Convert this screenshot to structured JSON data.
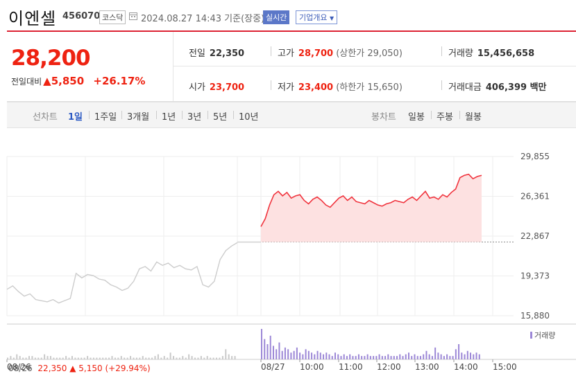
{
  "header": {
    "stock_name": "이엔셀",
    "stock_code": "456070",
    "market": "코스닥",
    "datetime": "2024.08.27 14:43",
    "basis": "기준(장중)",
    "realtime_label": "실시간",
    "company_info_label": "기업개요"
  },
  "quote": {
    "price": "28,200",
    "change_label": "전일대비",
    "change": "▲5,850",
    "change_pct": "+26.17%",
    "prev_close_label": "전일",
    "prev_close": "22,350",
    "high_label": "고가",
    "high": "28,700",
    "upper_limit_label": "(상한가",
    "upper_limit": "29,050)",
    "volume_label": "거래량",
    "volume": "15,456,658",
    "open_label": "시가",
    "open": "23,700",
    "low_label": "저가",
    "low": "23,400",
    "lower_limit_label": "(하한가",
    "lower_limit": "15,650)",
    "amount_label": "거래대금",
    "amount": "406,399 백만"
  },
  "tabs": {
    "line_chart_label": "선차트",
    "periods": [
      "1일",
      "1주일",
      "3개월",
      "1년",
      "3년",
      "5년",
      "10년"
    ],
    "selected_period": "1일",
    "candle_label": "봉차트",
    "candles": [
      "일봉",
      "주봉",
      "월봉"
    ]
  },
  "chart_data": {
    "type": "line",
    "ylim": [
      15880,
      29855
    ],
    "yticks": [
      "29,855",
      "26,361",
      "22,867",
      "19,373",
      "15,880"
    ],
    "prev_close": 22350,
    "xticks": [
      "08/26",
      "08/27",
      "10:00",
      "11:00",
      "12:00",
      "13:00",
      "14:00",
      "15:00"
    ],
    "volume_legend": "거래량",
    "colors": {
      "prev_day": "#cccccc",
      "today": "#f0333d",
      "fill": "#fde1e1",
      "volume": "#9b86d6"
    },
    "prev_day_series": [
      18200,
      18500,
      18000,
      17600,
      17800,
      17300,
      17200,
      17100,
      17300,
      17000,
      17200,
      17400,
      19600,
      19200,
      19500,
      19400,
      19100,
      19000,
      18600,
      18400,
      18100,
      18300,
      18900,
      20000,
      20200,
      19800,
      20600,
      20300,
      20500,
      20100,
      20300,
      20000,
      19900,
      20200,
      18600,
      18400,
      18900,
      20800,
      21600,
      22000,
      22300
    ],
    "today_series": [
      23700,
      24400,
      25600,
      26500,
      26800,
      26400,
      26700,
      26200,
      26400,
      26500,
      26000,
      25700,
      26100,
      26300,
      26000,
      25600,
      25400,
      25800,
      26200,
      26400,
      26000,
      26300,
      25900,
      25800,
      25700,
      26000,
      25800,
      25600,
      25500,
      25700,
      25800,
      26000,
      25900,
      25800,
      26100,
      26300,
      26000,
      26400,
      26800,
      26200,
      26300,
      26100,
      26500,
      26300,
      26700,
      27000,
      28000,
      28200,
      28300,
      27900,
      28100,
      28200
    ],
    "prev_day_volume": [
      1,
      2,
      1,
      3,
      2,
      1,
      1,
      2,
      2,
      1,
      1,
      1,
      3,
      2,
      2,
      1,
      1,
      1,
      1,
      2,
      1,
      2,
      1,
      1,
      1,
      1,
      2,
      1,
      1,
      1,
      1,
      1,
      1,
      1,
      2,
      1,
      1,
      2,
      1,
      1,
      2,
      1,
      1,
      1,
      2,
      1,
      1,
      1,
      2,
      3,
      1,
      2,
      1,
      4,
      2,
      1,
      1,
      2,
      1,
      3,
      2,
      1,
      1,
      2,
      1,
      2,
      1,
      1,
      1,
      1,
      2,
      6,
      3,
      2,
      2
    ],
    "today_volume": [
      18,
      12,
      9,
      14,
      8,
      6,
      10,
      5,
      7,
      6,
      4,
      5,
      7,
      4,
      3,
      6,
      5,
      4,
      3,
      5,
      4,
      3,
      4,
      3,
      2,
      4,
      3,
      2,
      3,
      2,
      3,
      2,
      2,
      3,
      2,
      2,
      3,
      2,
      2,
      2,
      3,
      2,
      2,
      3,
      2,
      2,
      2,
      3,
      2,
      3,
      4,
      2,
      3,
      2,
      2,
      3,
      5,
      3,
      2,
      7,
      4,
      3,
      2,
      3,
      2,
      2,
      6,
      9,
      4,
      3,
      5,
      4,
      3,
      4,
      3
    ]
  },
  "footer": {
    "date": "08/26",
    "price": "22,350",
    "change": "▲ 5,150 (+29.94%)"
  }
}
